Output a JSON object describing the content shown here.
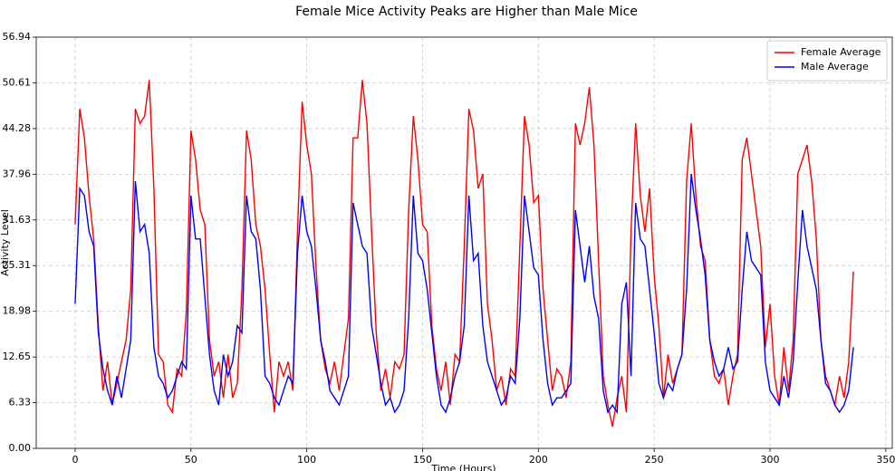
{
  "chart_data": {
    "type": "line",
    "title": "Female Mice Activity Peaks are Higher than Male Mice",
    "xlabel": "Time (Hours)",
    "ylabel": "Activity Level",
    "x": [
      0,
      2,
      4,
      6,
      8,
      10,
      12,
      14,
      16,
      18,
      20,
      22,
      24,
      26,
      28,
      30,
      32,
      34,
      36,
      38,
      40,
      42,
      44,
      46,
      48,
      50,
      52,
      54,
      56,
      58,
      60,
      62,
      64,
      66,
      68,
      70,
      72,
      74,
      76,
      78,
      80,
      82,
      84,
      86,
      88,
      90,
      92,
      94,
      96,
      98,
      100,
      102,
      104,
      106,
      108,
      110,
      112,
      114,
      116,
      118,
      120,
      122,
      124,
      126,
      128,
      130,
      132,
      134,
      136,
      138,
      140,
      142,
      144,
      146,
      148,
      150,
      152,
      154,
      156,
      158,
      160,
      162,
      164,
      166,
      168,
      170,
      172,
      174,
      176,
      178,
      180,
      182,
      184,
      186,
      188,
      190,
      192,
      194,
      196,
      198,
      200,
      202,
      204,
      206,
      208,
      210,
      212,
      214,
      216,
      218,
      220,
      222,
      224,
      226,
      228,
      230,
      232,
      234,
      236,
      238,
      240,
      242,
      244,
      246,
      248,
      250,
      252,
      254,
      256,
      258,
      260,
      262,
      264,
      266,
      268,
      270,
      272,
      274,
      276,
      278,
      280,
      282,
      284,
      286,
      288,
      290,
      292,
      294,
      296,
      298,
      300,
      302,
      304,
      306,
      308,
      310,
      312,
      314,
      316,
      318,
      320,
      322,
      324,
      326,
      328,
      330,
      332,
      334,
      336
    ],
    "series": [
      {
        "name": "Female Average",
        "color": "#ff0000",
        "values": [
          31,
          47,
          43,
          35,
          29,
          17,
          8,
          12,
          6,
          9,
          12,
          15,
          22,
          47,
          45,
          46,
          51,
          36,
          13,
          12,
          6,
          5,
          11,
          10,
          19,
          44,
          40,
          33,
          31,
          15,
          10,
          12,
          7,
          13,
          7,
          9,
          22,
          44,
          40,
          31,
          28,
          22,
          13,
          5,
          12,
          10,
          12,
          8,
          30,
          48,
          42,
          38,
          25,
          15,
          11,
          9,
          12,
          8,
          13,
          18,
          43,
          43,
          51,
          45,
          30,
          16,
          8,
          11,
          7,
          12,
          11,
          13,
          33,
          46,
          40,
          31,
          30,
          17,
          11,
          8,
          12,
          6,
          13,
          12,
          28,
          47,
          44,
          36,
          38,
          20,
          15,
          8,
          10,
          6,
          11,
          10,
          28,
          46,
          42,
          34,
          35,
          22,
          15,
          8,
          11,
          10,
          7,
          12,
          45,
          42,
          45,
          50,
          42,
          26,
          10,
          6,
          3,
          7,
          10,
          5,
          30,
          45,
          35,
          30,
          36,
          24,
          17,
          7,
          13,
          9,
          11,
          13,
          37,
          45,
          35,
          28,
          26,
          15,
          10,
          9,
          11,
          6,
          10,
          13,
          40,
          43,
          38,
          33,
          28,
          14,
          20,
          10,
          6,
          14,
          8,
          15,
          38,
          40,
          42,
          37,
          29,
          15,
          10,
          8,
          6,
          10,
          7,
          12,
          24.5
        ]
      },
      {
        "name": "Male Average",
        "color": "#0000ff",
        "values": [
          20,
          36,
          35,
          30,
          28,
          16,
          11,
          8,
          6,
          10,
          7,
          11,
          15,
          37,
          30,
          31,
          27,
          14,
          10,
          9,
          7,
          8,
          10,
          12,
          11,
          35,
          29,
          29,
          21,
          13,
          8,
          6,
          13,
          10,
          12,
          17,
          16,
          35,
          30,
          29,
          22,
          10,
          9,
          7,
          6,
          8,
          10,
          9,
          27,
          35,
          30,
          28,
          22,
          15,
          12,
          8,
          7,
          6,
          8,
          10,
          34,
          31,
          28,
          27,
          17,
          13,
          9,
          6,
          7,
          5,
          6,
          8,
          18,
          35,
          27,
          26,
          22,
          16,
          10,
          6,
          5,
          7,
          10,
          12,
          17,
          35,
          26,
          27,
          17,
          12,
          10,
          8,
          6,
          7,
          10,
          9,
          18,
          35,
          30,
          25,
          24,
          15,
          9,
          6,
          7,
          7,
          8,
          9,
          33,
          28,
          23,
          28,
          21,
          18,
          8,
          5,
          6,
          5,
          20,
          23,
          10,
          34,
          29,
          28,
          22,
          16,
          9,
          7,
          9,
          8,
          11,
          13,
          22,
          38,
          33,
          29,
          24,
          15,
          12,
          10,
          11,
          14,
          11,
          12,
          22,
          30,
          26,
          25,
          24,
          12,
          8,
          7,
          6,
          10,
          7,
          12,
          23,
          33,
          28,
          25,
          22,
          15,
          9,
          8,
          6,
          5,
          6,
          8,
          14
        ]
      }
    ],
    "xlim": [
      -16.8,
      352.8
    ],
    "xticks": [
      0,
      50,
      100,
      150,
      200,
      250,
      300,
      350
    ],
    "ylim": [
      0,
      56.94
    ],
    "yticks": [
      {
        "value": 0,
        "label": "0.00"
      },
      6.33,
      12.65,
      18.98,
      25.31,
      31.63,
      37.96,
      44.28,
      50.61,
      56.94
    ],
    "grid": true,
    "legend": "upper right"
  }
}
